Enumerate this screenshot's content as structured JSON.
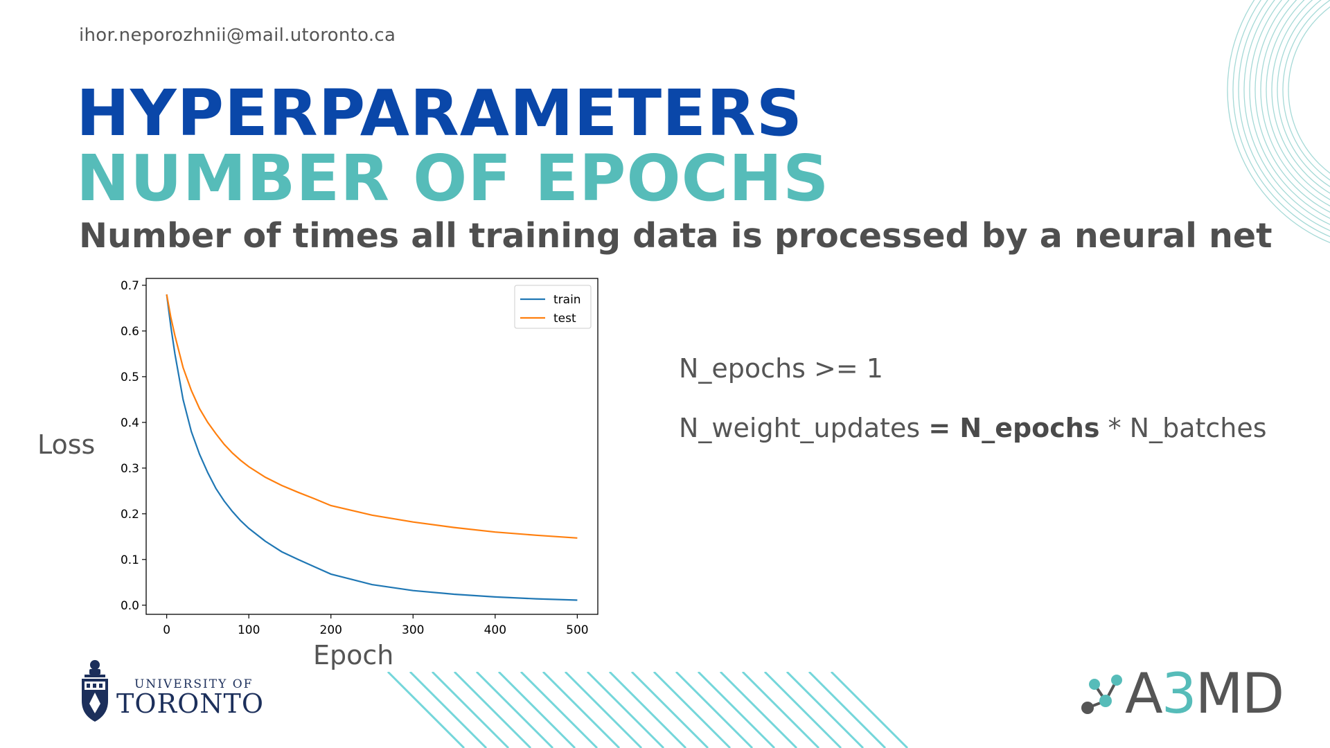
{
  "header": {
    "email": "ihor.neporozhnii@mail.utoronto.ca",
    "title_line1": "HYPERPARAMETERS",
    "title_line2": "NUMBER OF EPOCHS",
    "subtitle": "Number of times all training data is processed by a neural net"
  },
  "formulas": {
    "line1": "N_epochs >= 1",
    "line2_prefix": "N_weight_updates",
    "line2_bold": "= N_epochs",
    "line2_suffix": "* N_batches"
  },
  "logos": {
    "university_line1": "UNIVERSITY OF",
    "university_line2": "TORONTO",
    "a3md_prefix": "A",
    "a3md_three": "3",
    "a3md_suffix": "MD"
  },
  "colors": {
    "title_blue": "#0a47a9",
    "title_teal": "#56bcb9",
    "train": "#1f77b4",
    "test": "#ff7f0e"
  },
  "chart_data": {
    "type": "line",
    "xlabel": "Epoch",
    "ylabel": "Loss",
    "xlim": [
      -25,
      525
    ],
    "ylim": [
      -0.02,
      0.715
    ],
    "xticks": [
      0,
      100,
      200,
      300,
      400,
      500
    ],
    "yticks": [
      0.0,
      0.1,
      0.2,
      0.3,
      0.4,
      0.5,
      0.6,
      0.7
    ],
    "grid": false,
    "legend_position": "top-right",
    "x": [
      0,
      5,
      10,
      20,
      30,
      40,
      50,
      60,
      70,
      80,
      90,
      100,
      120,
      140,
      160,
      180,
      200,
      250,
      300,
      350,
      400,
      450,
      500
    ],
    "series": [
      {
        "name": "train",
        "color": "#1f77b4",
        "values": [
          0.68,
          0.61,
          0.55,
          0.45,
          0.38,
          0.33,
          0.29,
          0.255,
          0.228,
          0.205,
          0.185,
          0.168,
          0.14,
          0.117,
          0.1,
          0.084,
          0.068,
          0.045,
          0.032,
          0.024,
          0.018,
          0.014,
          0.011
        ]
      },
      {
        "name": "test",
        "color": "#ff7f0e",
        "values": [
          0.68,
          0.63,
          0.59,
          0.52,
          0.47,
          0.43,
          0.4,
          0.375,
          0.352,
          0.333,
          0.317,
          0.303,
          0.28,
          0.262,
          0.247,
          0.233,
          0.218,
          0.197,
          0.182,
          0.17,
          0.16,
          0.153,
          0.147
        ]
      }
    ]
  }
}
